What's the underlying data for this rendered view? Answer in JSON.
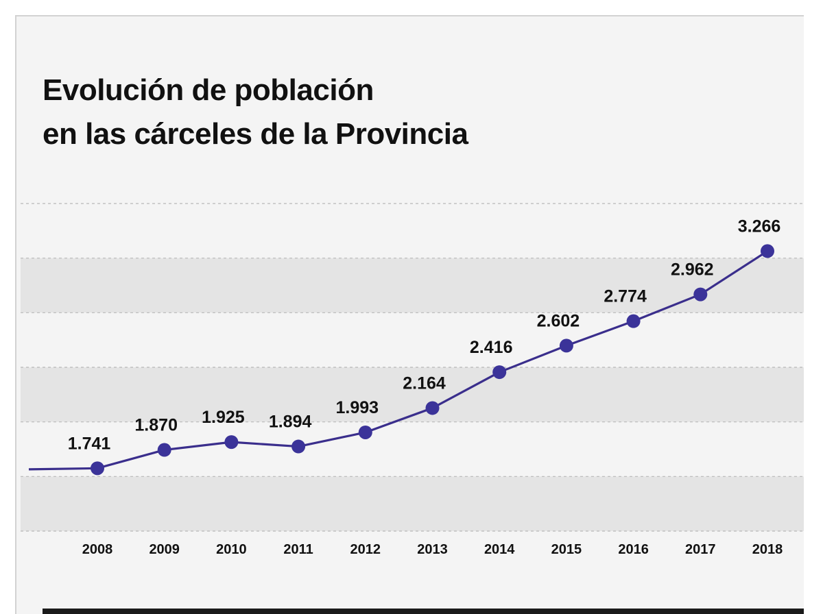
{
  "title": {
    "line1": "Evolución de población",
    "line2": "en las cárceles de la Provincia"
  },
  "chart_data": {
    "type": "line",
    "title": "Evolución de población en las cárceles de la Provincia",
    "x": [
      "2008",
      "2009",
      "2010",
      "2011",
      "2012",
      "2013",
      "2014",
      "2015",
      "2016",
      "2017",
      "2018"
    ],
    "series": [
      {
        "values": [
          1741,
          1870,
          1925,
          1894,
          1993,
          2164,
          2416,
          2602,
          2774,
          2962,
          3266
        ],
        "labels": [
          "1.741",
          "1.870",
          "1.925",
          "1.894",
          "1.993",
          "2.164",
          "2.416",
          "2.602",
          "2.774",
          "2.962",
          "3.266"
        ]
      }
    ],
    "xlabel": "",
    "ylabel": "",
    "ylim": [
      1300,
      3600
    ],
    "grid": true,
    "legend": "none",
    "colors": {
      "line": "#3a2e8c",
      "marker": "#3b3399",
      "band": "#e4e4e4",
      "gridline": "#b8b8b8",
      "text": "#111111"
    }
  }
}
